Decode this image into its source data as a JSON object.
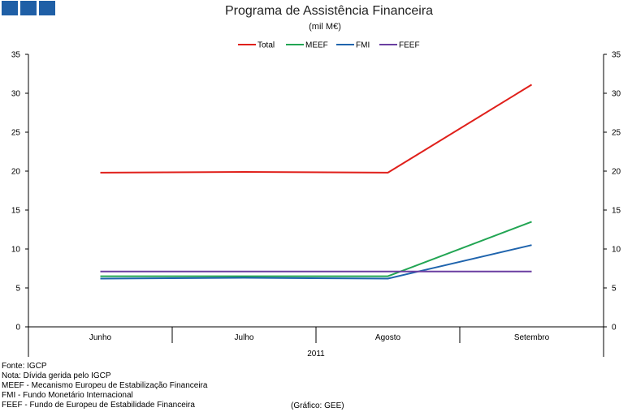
{
  "header": {
    "title": "Programa de Assistência Financeira",
    "subtitle": "(mil M€)"
  },
  "chart_data": {
    "type": "line",
    "categories": [
      "Junho",
      "Julho",
      "Agosto",
      "Setembro"
    ],
    "x_group_label": "2011",
    "ylim": [
      0,
      35
    ],
    "yticks": [
      "0",
      "5",
      "10",
      "15",
      "20",
      "25",
      "30",
      "35"
    ],
    "legend_position": "top",
    "grid": false,
    "series": [
      {
        "name": "Total",
        "color": "#e0201b",
        "values": [
          19.8,
          19.9,
          19.8,
          31.1
        ]
      },
      {
        "name": "MEEF",
        "color": "#22a553",
        "values": [
          6.5,
          6.5,
          6.5,
          13.5
        ]
      },
      {
        "name": "FMI",
        "color": "#1f64ad",
        "values": [
          6.2,
          6.3,
          6.2,
          10.5
        ]
      },
      {
        "name": "FEEF",
        "color": "#6a3ea1",
        "values": [
          7.1,
          7.1,
          7.1,
          7.1
        ]
      }
    ]
  },
  "footer": {
    "notes": [
      "Fonte: IGCP",
      "Nota: Dívida gerida pelo IGCP",
      "MEEF - Mecanismo Europeu de Estabilização Financeira",
      "FMI - Fundo Monetário Internacional",
      "FEEF - Fundo de Europeu de Estabilidade Financeira"
    ],
    "credit": "(Gráfico: GEE)"
  }
}
